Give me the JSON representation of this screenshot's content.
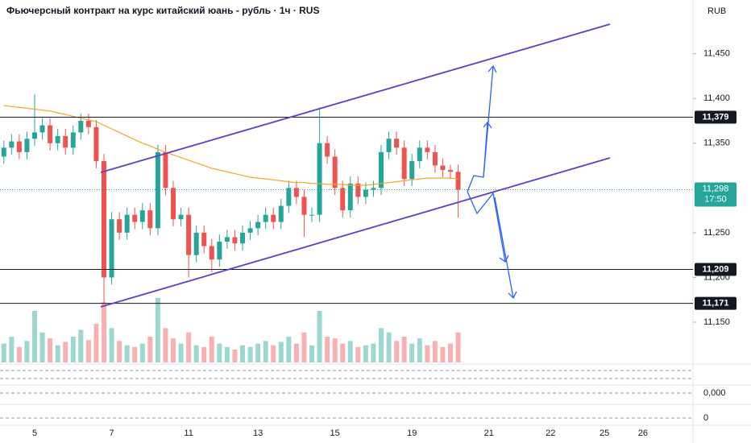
{
  "chart_data": {
    "type": "candlestick",
    "title": "Фьючерсный контракт на курс китайский юань - рубль · 1ч · RUS",
    "currency": "RUB",
    "categories": [
      null,
      null,
      null,
      null,
      "5",
      null,
      null,
      null,
      null,
      null,
      null,
      null,
      null,
      null,
      "7",
      null,
      null,
      null,
      null,
      null,
      null,
      null,
      null,
      null,
      "11",
      null,
      null,
      null,
      null,
      null,
      null,
      null,
      null,
      "13",
      null,
      null,
      null,
      null,
      null,
      null,
      null,
      null,
      null,
      "15",
      null,
      null,
      null,
      null,
      null,
      null,
      null,
      null,
      null,
      "19",
      null,
      null,
      null,
      null,
      null,
      null,
      null,
      null,
      null,
      "21",
      null,
      null,
      null,
      null,
      null,
      null,
      null,
      "22",
      null,
      null,
      null,
      null,
      null,
      null,
      "25",
      null,
      null,
      null,
      null,
      "26",
      null,
      null,
      null,
      null,
      null,
      null
    ],
    "open": [
      11335,
      11345,
      11352,
      11340,
      11355,
      11362,
      11370,
      11350,
      11358,
      11345,
      11362,
      11375,
      11368,
      11330,
      11200,
      11265,
      11250,
      11270,
      11262,
      11275,
      11255,
      11340,
      11300,
      11265,
      11270,
      11225,
      11250,
      11235,
      11220,
      11240,
      11245,
      11238,
      11250,
      11255,
      11262,
      11270,
      11262,
      11280,
      11300,
      11290,
      11270,
      11270,
      11350,
      11335,
      11300,
      11275,
      11305,
      11290,
      11298,
      11300,
      11340,
      11355,
      11345,
      11310,
      11330,
      11345,
      11340,
      11325,
      11320,
      11318,
      null,
      null,
      null,
      null,
      null,
      null,
      null,
      null,
      null,
      null,
      null,
      null,
      null,
      null,
      null,
      null,
      null,
      null,
      null,
      null,
      null,
      null,
      null,
      null,
      null,
      null,
      null,
      null,
      null,
      null
    ],
    "high": [
      11353,
      11360,
      11360,
      11363,
      11405,
      11378,
      11378,
      11366,
      11366,
      11370,
      11383,
      11383,
      11376,
      11338,
      11273,
      11273,
      11278,
      11278,
      11283,
      11283,
      11348,
      11348,
      11308,
      11278,
      11278,
      11258,
      11258,
      11243,
      11248,
      11253,
      11253,
      11258,
      11263,
      11270,
      11278,
      11278,
      11288,
      11308,
      11308,
      11298,
      11278,
      11390,
      11358,
      11343,
      11308,
      11313,
      11313,
      11306,
      11308,
      11348,
      11363,
      11363,
      11353,
      11338,
      11353,
      11353,
      11348,
      11333,
      11326,
      11326,
      null,
      null,
      null,
      null,
      null,
      null,
      null,
      null,
      null,
      null,
      null,
      null,
      null,
      null,
      null,
      null,
      null,
      null,
      null,
      null,
      null,
      null,
      null,
      null,
      null,
      null,
      null,
      null,
      null,
      null
    ],
    "low": [
      11327,
      11337,
      11332,
      11332,
      11347,
      11354,
      11342,
      11342,
      11337,
      11337,
      11354,
      11360,
      11322,
      11171,
      11192,
      11242,
      11242,
      11254,
      11254,
      11247,
      11247,
      11292,
      11257,
      11257,
      11200,
      11217,
      11227,
      11206,
      11212,
      11232,
      11230,
      11230,
      11242,
      11247,
      11254,
      11254,
      11254,
      11272,
      11282,
      11245,
      11262,
      11262,
      11327,
      11292,
      11267,
      11267,
      11282,
      11282,
      11290,
      11292,
      11332,
      11337,
      11302,
      11302,
      11322,
      11332,
      11317,
      11312,
      11310,
      11267,
      null,
      null,
      null,
      null,
      null,
      null,
      null,
      null,
      null,
      null,
      null,
      null,
      null,
      null,
      null,
      null,
      null,
      null,
      null,
      null,
      null,
      null,
      null,
      null,
      null,
      null,
      null,
      null,
      null,
      null
    ],
    "close": [
      11345,
      11352,
      11340,
      11355,
      11362,
      11370,
      11350,
      11358,
      11345,
      11362,
      11375,
      11368,
      11330,
      11200,
      11265,
      11250,
      11270,
      11262,
      11275,
      11255,
      11340,
      11300,
      11265,
      11270,
      11225,
      11250,
      11235,
      11220,
      11240,
      11245,
      11238,
      11250,
      11255,
      11262,
      11270,
      11262,
      11280,
      11300,
      11290,
      11270,
      11270,
      11350,
      11335,
      11300,
      11275,
      11305,
      11290,
      11298,
      11300,
      11340,
      11355,
      11345,
      11310,
      11330,
      11345,
      11340,
      11325,
      11320,
      11318,
      11298,
      null,
      null,
      null,
      null,
      null,
      null,
      null,
      null,
      null,
      null,
      null,
      null,
      null,
      null,
      null,
      null,
      null,
      null,
      null,
      null,
      null,
      null,
      null,
      null,
      null,
      null,
      null,
      null,
      null,
      null
    ],
    "moving_average": [
      11392,
      11391,
      11390,
      11389,
      11388,
      11387,
      11386,
      11384,
      11382,
      11380,
      11378,
      11376,
      11374,
      11370,
      11366,
      11362,
      11358,
      11354,
      11350,
      11347,
      11343,
      11340,
      11337,
      11334,
      11331,
      11328,
      11325,
      11322,
      11320,
      11318,
      11316,
      11314,
      11312,
      11311,
      11310,
      11309,
      11308,
      11307,
      11306,
      11306,
      11305,
      11305,
      11304,
      11304,
      11304,
      11303,
      11303,
      11303,
      11304,
      11305,
      11306,
      11307,
      11308,
      11309,
      11310,
      11311,
      11311,
      11311,
      11311,
      11310,
      null,
      null,
      null,
      null,
      null,
      null,
      null,
      null,
      null,
      null,
      null,
      null,
      null,
      null,
      null,
      null,
      null,
      null,
      null,
      null,
      null,
      null,
      null,
      null,
      null,
      null,
      null,
      null,
      null,
      null
    ],
    "volume": [
      22,
      30,
      18,
      25,
      60,
      35,
      28,
      20,
      24,
      30,
      38,
      26,
      45,
      70,
      40,
      25,
      20,
      18,
      22,
      30,
      75,
      40,
      28,
      22,
      35,
      20,
      18,
      30,
      22,
      18,
      15,
      20,
      18,
      22,
      25,
      20,
      24,
      30,
      22,
      35,
      20,
      60,
      30,
      28,
      22,
      25,
      18,
      20,
      22,
      40,
      35,
      25,
      30,
      22,
      28,
      20,
      25,
      18,
      22,
      35,
      null,
      null,
      null,
      null,
      null,
      null,
      null,
      null,
      null,
      null,
      null,
      null,
      null,
      null,
      null,
      null,
      null,
      null,
      null,
      null,
      null,
      null,
      null,
      null,
      null,
      null,
      null,
      null,
      null,
      null
    ],
    "up_color": "#26a69a",
    "down_color": "#ef5350",
    "ma_color": "#f5a623",
    "ylim": [
      11105,
      11510
    ],
    "yticks": [
      {
        "value": 11150,
        "label": "11,150"
      },
      {
        "value": 11200,
        "label": "11,200"
      },
      {
        "value": 11250,
        "label": "11,250"
      },
      {
        "value": 11350,
        "label": "11,350"
      },
      {
        "value": 11400,
        "label": "11,400"
      },
      {
        "value": 11450,
        "label": "11,450"
      }
    ],
    "price_lines": [
      {
        "value": 11379,
        "label": "11,379"
      },
      {
        "value": 11209,
        "label": "11,209"
      },
      {
        "value": 11171,
        "label": "11,171"
      }
    ],
    "last_price": {
      "value": 11298,
      "label": "11,298",
      "time": "17:50"
    },
    "indicator_labels": [
      "0,000",
      "0"
    ]
  }
}
